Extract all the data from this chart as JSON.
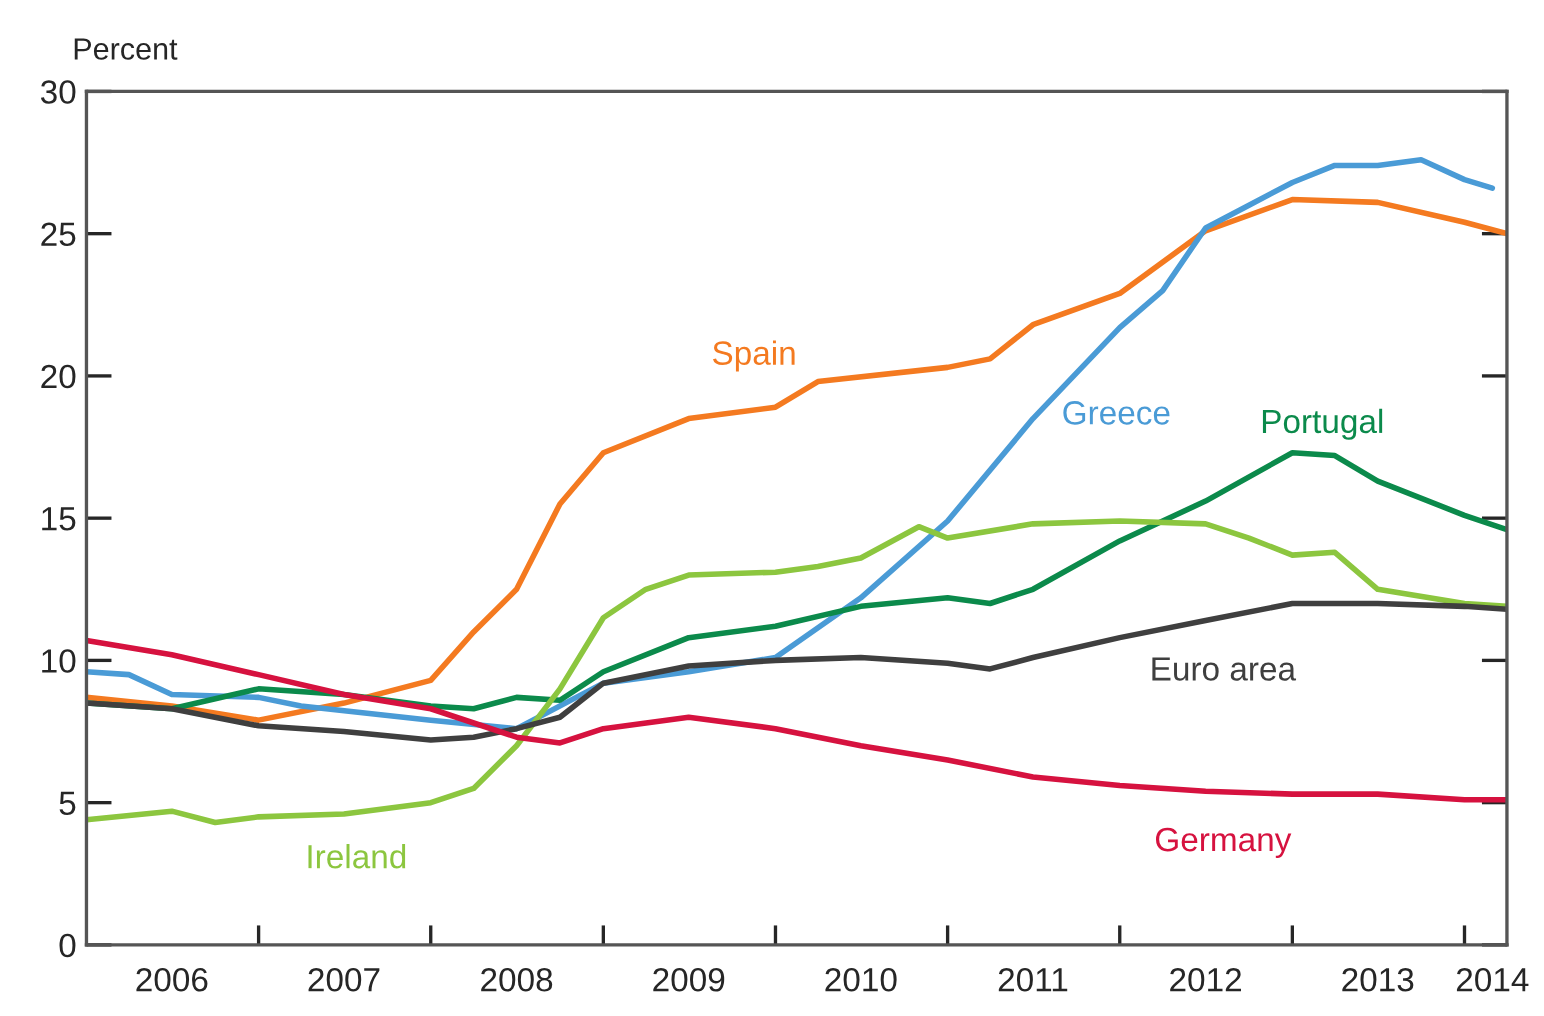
{
  "chart_data": {
    "type": "line",
    "ylabel": "Percent",
    "xlim": [
      "2006-01",
      "2014-04"
    ],
    "xticks": [
      {
        "value": "2006-07",
        "label": "2006"
      },
      {
        "value": "2007-01",
        "label": null
      },
      {
        "value": "2007-07",
        "label": "2007"
      },
      {
        "value": "2008-01",
        "label": null
      },
      {
        "value": "2008-07",
        "label": "2008"
      },
      {
        "value": "2009-01",
        "label": null
      },
      {
        "value": "2009-07",
        "label": "2009"
      },
      {
        "value": "2010-01",
        "label": null
      },
      {
        "value": "2010-07",
        "label": "2010"
      },
      {
        "value": "2011-01",
        "label": null
      },
      {
        "value": "2011-07",
        "label": "2011"
      },
      {
        "value": "2012-01",
        "label": null
      },
      {
        "value": "2012-07",
        "label": "2012"
      },
      {
        "value": "2013-01",
        "label": null
      },
      {
        "value": "2013-07",
        "label": "2013"
      },
      {
        "value": "2014-01",
        "label": null
      },
      {
        "value": "2014-03",
        "label": "2014"
      }
    ],
    "ylim": [
      0,
      30
    ],
    "yticks": [
      0,
      5,
      10,
      15,
      20,
      25,
      30
    ],
    "grid": false,
    "legend": false,
    "marker": "none",
    "line_style": "solid",
    "series": [
      {
        "name": "Spain",
        "color": "#f47a20",
        "x": [
          "2006-01",
          "2006-07",
          "2007-01",
          "2007-07",
          "2008-01",
          "2008-04",
          "2008-07",
          "2008-10",
          "2009-01",
          "2009-07",
          "2010-01",
          "2010-04",
          "2011-01",
          "2011-04",
          "2011-07",
          "2012-01",
          "2012-07",
          "2013-01",
          "2013-07",
          "2014-01",
          "2014-04"
        ],
        "values": [
          8.7,
          8.4,
          7.9,
          8.5,
          9.3,
          11.0,
          12.5,
          15.5,
          17.3,
          18.5,
          18.9,
          19.8,
          20.3,
          20.6,
          21.8,
          22.9,
          25.1,
          26.2,
          26.1,
          25.4,
          25.0
        ]
      },
      {
        "name": "Greece",
        "color": "#4a9bd6",
        "x": [
          "2006-01",
          "2006-04",
          "2006-07",
          "2007-01",
          "2007-04",
          "2008-01",
          "2008-07",
          "2009-01",
          "2009-07",
          "2010-01",
          "2010-07",
          "2011-01",
          "2011-07",
          "2012-01",
          "2012-04",
          "2012-07",
          "2012-10",
          "2013-01",
          "2013-04",
          "2013-07",
          "2013-10",
          "2014-01",
          "2014-03"
        ],
        "values": [
          9.6,
          9.5,
          8.8,
          8.7,
          8.4,
          7.9,
          7.6,
          9.2,
          9.6,
          10.1,
          12.2,
          14.9,
          18.5,
          21.7,
          23.0,
          25.2,
          26.0,
          26.8,
          27.4,
          27.4,
          27.6,
          26.9,
          26.6
        ]
      },
      {
        "name": "Portugal",
        "color": "#0b8a4b",
        "x": [
          "2006-01",
          "2006-07",
          "2007-01",
          "2007-07",
          "2008-01",
          "2008-04",
          "2008-07",
          "2008-10",
          "2009-01",
          "2009-07",
          "2010-01",
          "2010-07",
          "2011-01",
          "2011-04",
          "2011-07",
          "2012-01",
          "2012-07",
          "2013-01",
          "2013-04",
          "2013-07",
          "2014-01",
          "2014-04"
        ],
        "values": [
          8.5,
          8.3,
          9.0,
          8.8,
          8.4,
          8.3,
          8.7,
          8.6,
          9.6,
          10.8,
          11.2,
          11.9,
          12.2,
          12.0,
          12.5,
          14.2,
          15.6,
          17.3,
          17.2,
          16.3,
          15.1,
          14.6
        ]
      },
      {
        "name": "Ireland",
        "color": "#8cc63f",
        "x": [
          "2006-01",
          "2006-07",
          "2006-10",
          "2007-01",
          "2007-07",
          "2008-01",
          "2008-04",
          "2008-07",
          "2008-10",
          "2009-01",
          "2009-04",
          "2009-07",
          "2010-01",
          "2010-04",
          "2010-07",
          "2010-11",
          "2011-01",
          "2011-07",
          "2012-01",
          "2012-07",
          "2012-10",
          "2013-01",
          "2013-04",
          "2013-07",
          "2014-01",
          "2014-04"
        ],
        "values": [
          4.4,
          4.7,
          4.3,
          4.5,
          4.6,
          5.0,
          5.5,
          7.0,
          9.0,
          11.5,
          12.5,
          13.0,
          13.1,
          13.3,
          13.6,
          14.7,
          14.3,
          14.8,
          14.9,
          14.8,
          14.3,
          13.7,
          13.8,
          12.5,
          12.0,
          11.9
        ]
      },
      {
        "name": "Euro area",
        "color": "#3f3f3f",
        "x": [
          "2006-01",
          "2006-07",
          "2007-01",
          "2007-07",
          "2008-01",
          "2008-04",
          "2008-07",
          "2008-10",
          "2009-01",
          "2009-07",
          "2010-01",
          "2010-07",
          "2011-01",
          "2011-04",
          "2011-07",
          "2012-01",
          "2012-07",
          "2013-01",
          "2013-07",
          "2014-01",
          "2014-04"
        ],
        "values": [
          8.5,
          8.3,
          7.7,
          7.5,
          7.2,
          7.3,
          7.6,
          8.0,
          9.2,
          9.8,
          10.0,
          10.1,
          9.9,
          9.7,
          10.1,
          10.8,
          11.4,
          12.0,
          12.0,
          11.9,
          11.8
        ]
      },
      {
        "name": "Germany",
        "color": "#d6123f",
        "x": [
          "2006-01",
          "2006-07",
          "2007-01",
          "2007-07",
          "2008-01",
          "2008-07",
          "2008-10",
          "2009-01",
          "2009-07",
          "2010-01",
          "2010-07",
          "2011-01",
          "2011-07",
          "2012-01",
          "2012-07",
          "2013-01",
          "2013-07",
          "2014-01",
          "2014-04"
        ],
        "values": [
          10.7,
          10.2,
          9.5,
          8.8,
          8.3,
          7.3,
          7.1,
          7.6,
          8.0,
          7.6,
          7.0,
          6.5,
          5.9,
          5.6,
          5.4,
          5.3,
          5.3,
          5.1,
          5.1
        ]
      }
    ]
  }
}
